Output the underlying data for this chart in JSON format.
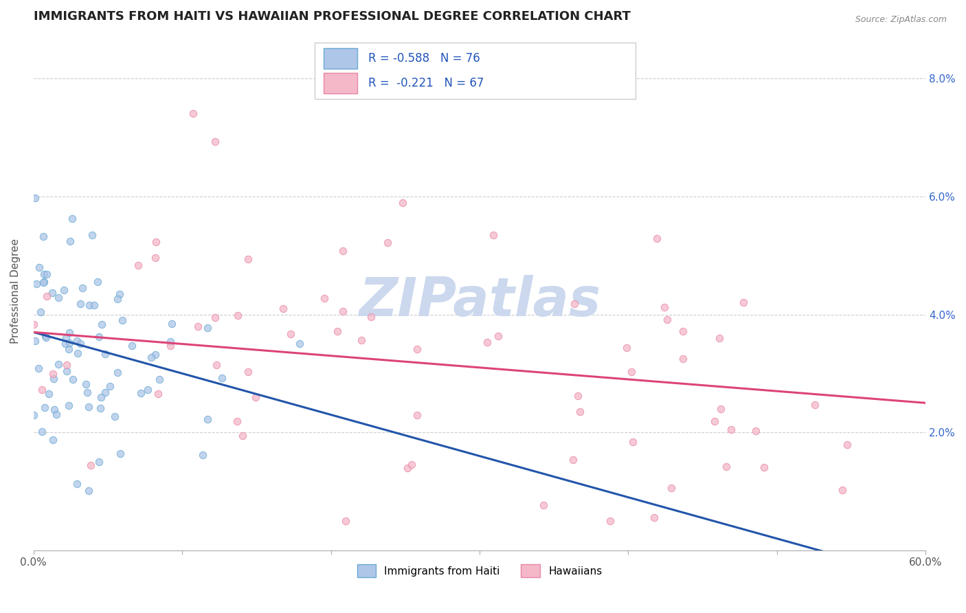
{
  "title": "IMMIGRANTS FROM HAITI VS HAWAIIAN PROFESSIONAL DEGREE CORRELATION CHART",
  "source_text": "Source: ZipAtlas.com",
  "ylabel": "Professional Degree",
  "xlim": [
    0.0,
    0.6
  ],
  "ylim": [
    0.0,
    0.088
  ],
  "xtick_vals": [
    0.0,
    0.1,
    0.2,
    0.3,
    0.4,
    0.5,
    0.6
  ],
  "xticklabels": [
    "0.0%",
    "",
    "",
    "",
    "",
    "",
    "60.0%"
  ],
  "ytick_vals": [
    0.02,
    0.04,
    0.06,
    0.08
  ],
  "yticklabels_right": [
    "2.0%",
    "4.0%",
    "6.0%",
    "8.0%"
  ],
  "blue_R": -0.588,
  "blue_N": 76,
  "pink_R": -0.221,
  "pink_N": 67,
  "blue_color": "#aec6e8",
  "pink_color": "#f4b8c8",
  "blue_edge": "#6aaad4",
  "pink_edge": "#e888a8",
  "blue_line_color": "#2255aa",
  "pink_line_color": "#dd4477",
  "blue_line_start_y": 0.037,
  "blue_line_end_y": -0.005,
  "pink_line_start_y": 0.037,
  "pink_line_end_y": 0.025,
  "watermark_text": "ZIPatlas",
  "watermark_color": "#ccd8ee",
  "background_color": "#ffffff",
  "grid_color": "#cccccc",
  "legend_r_color": "#2255bb",
  "title_fontsize": 13,
  "axis_label_fontsize": 11,
  "tick_fontsize": 11,
  "dot_size": 55,
  "dot_alpha": 0.75,
  "seed": 12345
}
